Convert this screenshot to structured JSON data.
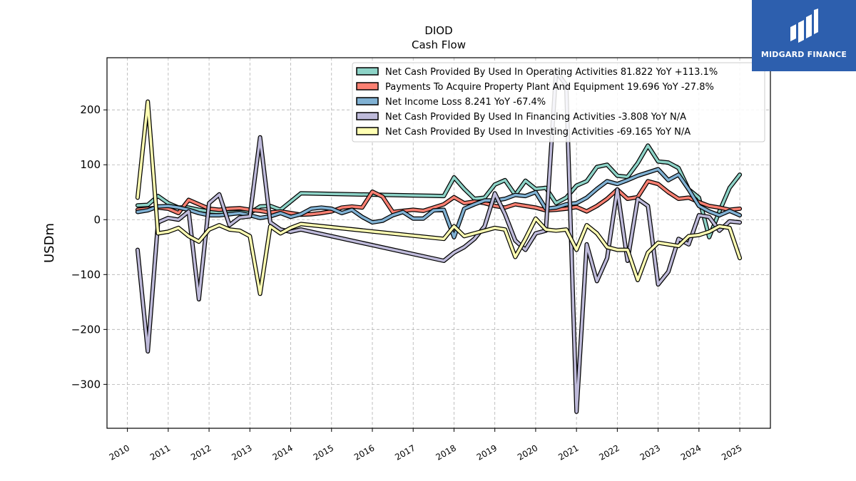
{
  "chart_data": {
    "type": "line",
    "title": "DIOD",
    "subtitle": "Cash Flow",
    "xlabel": "",
    "ylabel": "USDm",
    "ylim": [
      -380,
      295
    ],
    "xlim": [
      2009.5,
      2025.75
    ],
    "yticks": [
      -300,
      -200,
      -100,
      0,
      100,
      200
    ],
    "xticks": [
      "2010",
      "2011",
      "2012",
      "2013",
      "2014",
      "2015",
      "2016",
      "2017",
      "2018",
      "2019",
      "2020",
      "2021",
      "2022",
      "2023",
      "2024",
      "2025"
    ],
    "grid": true,
    "legend_position": "top-right",
    "series": [
      {
        "name": "Net Cash Provided By Used In Operating Activities",
        "legend": "Net Cash Provided By Used In Operating Activities  81.822 YoY +113.1%",
        "color": "#8dd3c7",
        "points": [
          [
            2010.25,
            26
          ],
          [
            2010.5,
            27
          ],
          [
            2010.75,
            43
          ],
          [
            2011.0,
            30
          ],
          [
            2011.25,
            22
          ],
          [
            2011.5,
            22
          ],
          [
            2011.75,
            18
          ],
          [
            2012.0,
            15
          ],
          [
            2012.25,
            14
          ],
          [
            2012.5,
            13
          ],
          [
            2012.75,
            14
          ],
          [
            2013.0,
            12
          ],
          [
            2013.25,
            24
          ],
          [
            2013.5,
            25
          ],
          [
            2013.75,
            18
          ],
          [
            2014.25,
            48
          ],
          [
            2017.75,
            43
          ],
          [
            2018.0,
            77
          ],
          [
            2018.25,
            56
          ],
          [
            2018.5,
            38
          ],
          [
            2018.75,
            40
          ],
          [
            2019.0,
            64
          ],
          [
            2019.25,
            72
          ],
          [
            2019.5,
            45
          ],
          [
            2019.75,
            71
          ],
          [
            2020.0,
            56
          ],
          [
            2020.25,
            58
          ],
          [
            2020.5,
            30
          ],
          [
            2020.75,
            40
          ],
          [
            2021.0,
            62
          ],
          [
            2021.25,
            70
          ],
          [
            2021.5,
            96
          ],
          [
            2021.75,
            100
          ],
          [
            2022.0,
            80
          ],
          [
            2022.25,
            78
          ],
          [
            2022.5,
            103
          ],
          [
            2022.75,
            135
          ],
          [
            2023.0,
            106
          ],
          [
            2023.25,
            104
          ],
          [
            2023.5,
            94
          ],
          [
            2023.75,
            55
          ],
          [
            2024.0,
            40
          ],
          [
            2024.25,
            -32
          ],
          [
            2024.5,
            15
          ],
          [
            2024.75,
            58
          ],
          [
            2025.0,
            82
          ]
        ]
      },
      {
        "name": "Payments To Acquire Property Plant And Equipment",
        "legend": "Payments To Acquire Property Plant And Equipment  19.696 YoY -27.8%",
        "color": "#fb8072",
        "points": [
          [
            2010.25,
            18
          ],
          [
            2010.5,
            20
          ],
          [
            2010.75,
            22
          ],
          [
            2011.0,
            20
          ],
          [
            2011.25,
            12
          ],
          [
            2011.5,
            36
          ],
          [
            2011.75,
            28
          ],
          [
            2012.0,
            20
          ],
          [
            2012.25,
            18
          ],
          [
            2012.5,
            20
          ],
          [
            2012.75,
            21
          ],
          [
            2013.0,
            18
          ],
          [
            2013.25,
            16
          ],
          [
            2013.5,
            13
          ],
          [
            2013.75,
            15
          ],
          [
            2014.0,
            12
          ],
          [
            2014.25,
            9
          ],
          [
            2014.5,
            10
          ],
          [
            2014.75,
            12
          ],
          [
            2015.0,
            15
          ],
          [
            2015.25,
            22
          ],
          [
            2015.5,
            24
          ],
          [
            2015.75,
            22
          ],
          [
            2016.0,
            51
          ],
          [
            2016.25,
            42
          ],
          [
            2016.5,
            14
          ],
          [
            2016.75,
            16
          ],
          [
            2017.0,
            18
          ],
          [
            2017.25,
            16
          ],
          [
            2017.5,
            22
          ],
          [
            2017.75,
            28
          ],
          [
            2018.0,
            41
          ],
          [
            2018.25,
            30
          ],
          [
            2018.5,
            33
          ],
          [
            2018.75,
            30
          ],
          [
            2019.0,
            25
          ],
          [
            2019.25,
            22
          ],
          [
            2019.5,
            28
          ],
          [
            2019.75,
            25
          ],
          [
            2020.0,
            22
          ],
          [
            2020.25,
            17
          ],
          [
            2020.5,
            18
          ],
          [
            2020.75,
            20
          ],
          [
            2021.0,
            23
          ],
          [
            2021.25,
            15
          ],
          [
            2021.5,
            25
          ],
          [
            2021.75,
            38
          ],
          [
            2022.0,
            55
          ],
          [
            2022.25,
            38
          ],
          [
            2022.5,
            41
          ],
          [
            2022.75,
            70
          ],
          [
            2023.0,
            65
          ],
          [
            2023.25,
            50
          ],
          [
            2023.5,
            38
          ],
          [
            2023.75,
            40
          ],
          [
            2024.0,
            32
          ],
          [
            2024.25,
            25
          ],
          [
            2024.5,
            22
          ],
          [
            2024.75,
            18
          ],
          [
            2025.0,
            20
          ]
        ]
      },
      {
        "name": "Net Income Loss",
        "legend": "Net Income Loss  8.241 YoY -67.4%",
        "color": "#80b1d3",
        "points": [
          [
            2010.25,
            14
          ],
          [
            2010.5,
            17
          ],
          [
            2010.75,
            24
          ],
          [
            2011.0,
            25
          ],
          [
            2011.25,
            22
          ],
          [
            2011.5,
            18
          ],
          [
            2011.75,
            12
          ],
          [
            2012.0,
            8
          ],
          [
            2012.25,
            8
          ],
          [
            2012.5,
            10
          ],
          [
            2012.75,
            12
          ],
          [
            2013.0,
            8
          ],
          [
            2013.25,
            3
          ],
          [
            2013.5,
            6
          ],
          [
            2013.75,
            12
          ],
          [
            2014.0,
            5
          ],
          [
            2014.25,
            10
          ],
          [
            2014.5,
            20
          ],
          [
            2014.75,
            22
          ],
          [
            2015.0,
            20
          ],
          [
            2015.25,
            12
          ],
          [
            2015.5,
            18
          ],
          [
            2015.75,
            5
          ],
          [
            2016.0,
            -5
          ],
          [
            2016.25,
            -2
          ],
          [
            2016.5,
            8
          ],
          [
            2016.75,
            14
          ],
          [
            2017.0,
            2
          ],
          [
            2017.25,
            2
          ],
          [
            2017.5,
            17
          ],
          [
            2017.75,
            18
          ],
          [
            2018.0,
            -32
          ],
          [
            2018.25,
            20
          ],
          [
            2018.5,
            28
          ],
          [
            2018.75,
            35
          ],
          [
            2019.0,
            35
          ],
          [
            2019.25,
            38
          ],
          [
            2019.5,
            45
          ],
          [
            2019.75,
            43
          ],
          [
            2020.0,
            50
          ],
          [
            2020.25,
            20
          ],
          [
            2020.5,
            22
          ],
          [
            2020.75,
            28
          ],
          [
            2021.0,
            30
          ],
          [
            2021.25,
            40
          ],
          [
            2021.5,
            56
          ],
          [
            2021.75,
            70
          ],
          [
            2022.0,
            65
          ],
          [
            2022.25,
            72
          ],
          [
            2022.5,
            80
          ],
          [
            2022.75,
            86
          ],
          [
            2023.0,
            92
          ],
          [
            2023.25,
            72
          ],
          [
            2023.5,
            82
          ],
          [
            2023.75,
            55
          ],
          [
            2024.0,
            25
          ],
          [
            2024.25,
            15
          ],
          [
            2024.5,
            8
          ],
          [
            2024.75,
            16
          ],
          [
            2025.0,
            8
          ]
        ]
      },
      {
        "name": "Net Cash Provided By Used In Financing Activities",
        "legend": "Net Cash Provided By Used In Financing Activities  -3.808 YoY N/A",
        "color": "#bebada",
        "points": [
          [
            2010.25,
            -55
          ],
          [
            2010.5,
            -240
          ],
          [
            2010.75,
            -5
          ],
          [
            2011.0,
            3
          ],
          [
            2011.25,
            0
          ],
          [
            2011.5,
            15
          ],
          [
            2011.75,
            -145
          ],
          [
            2012.0,
            30
          ],
          [
            2012.25,
            46
          ],
          [
            2012.5,
            -10
          ],
          [
            2012.75,
            4
          ],
          [
            2013.0,
            6
          ],
          [
            2013.25,
            150
          ],
          [
            2013.5,
            -5
          ],
          [
            2013.75,
            -18
          ],
          [
            2014.0,
            -22
          ],
          [
            2014.25,
            -18
          ],
          [
            2017.75,
            -75
          ],
          [
            2018.0,
            -60
          ],
          [
            2018.25,
            -50
          ],
          [
            2018.5,
            -35
          ],
          [
            2018.75,
            -12
          ],
          [
            2019.0,
            48
          ],
          [
            2019.25,
            10
          ],
          [
            2019.5,
            -38
          ],
          [
            2019.75,
            -55
          ],
          [
            2020.0,
            -25
          ],
          [
            2020.25,
            -20
          ],
          [
            2020.5,
            270
          ],
          [
            2020.75,
            245
          ],
          [
            2021.0,
            -350
          ],
          [
            2021.25,
            -45
          ],
          [
            2021.5,
            -112
          ],
          [
            2021.75,
            -70
          ],
          [
            2022.0,
            55
          ],
          [
            2022.25,
            -75
          ],
          [
            2022.5,
            38
          ],
          [
            2022.75,
            25
          ],
          [
            2023.0,
            -118
          ],
          [
            2023.25,
            -95
          ],
          [
            2023.5,
            -35
          ],
          [
            2023.75,
            -45
          ],
          [
            2024.0,
            8
          ],
          [
            2024.25,
            5
          ],
          [
            2024.5,
            -20
          ],
          [
            2024.75,
            -3
          ],
          [
            2025.0,
            -5
          ]
        ]
      },
      {
        "name": "Net Cash Provided By Used In Investing Activities",
        "legend": "Net Cash Provided By Used In Investing Activities  -69.165 YoY N/A",
        "color": "#ffffb3",
        "points": [
          [
            2010.25,
            40
          ],
          [
            2010.5,
            215
          ],
          [
            2010.75,
            -25
          ],
          [
            2011.0,
            -22
          ],
          [
            2011.25,
            -15
          ],
          [
            2011.5,
            -30
          ],
          [
            2011.75,
            -40
          ],
          [
            2012.0,
            -18
          ],
          [
            2012.25,
            -10
          ],
          [
            2012.5,
            -18
          ],
          [
            2012.75,
            -20
          ],
          [
            2013.0,
            -30
          ],
          [
            2013.25,
            -135
          ],
          [
            2013.5,
            -12
          ],
          [
            2013.75,
            -25
          ],
          [
            2014.0,
            -15
          ],
          [
            2014.25,
            -8
          ],
          [
            2017.75,
            -35
          ],
          [
            2018.0,
            -12
          ],
          [
            2018.25,
            -30
          ],
          [
            2018.5,
            -25
          ],
          [
            2018.75,
            -20
          ],
          [
            2019.0,
            -15
          ],
          [
            2019.25,
            -18
          ],
          [
            2019.5,
            -68
          ],
          [
            2019.75,
            -35
          ],
          [
            2020.0,
            2
          ],
          [
            2020.25,
            -18
          ],
          [
            2020.5,
            -20
          ],
          [
            2020.75,
            -18
          ],
          [
            2021.0,
            -55
          ],
          [
            2021.25,
            -10
          ],
          [
            2021.5,
            -25
          ],
          [
            2021.75,
            -50
          ],
          [
            2022.0,
            -55
          ],
          [
            2022.25,
            -55
          ],
          [
            2022.5,
            -110
          ],
          [
            2022.75,
            -60
          ],
          [
            2023.0,
            -42
          ],
          [
            2023.25,
            -45
          ],
          [
            2023.5,
            -48
          ],
          [
            2023.75,
            -30
          ],
          [
            2024.0,
            -28
          ],
          [
            2024.25,
            -22
          ],
          [
            2024.5,
            -12
          ],
          [
            2024.75,
            -15
          ],
          [
            2025.0,
            -70
          ]
        ]
      }
    ]
  },
  "logo": {
    "text": "MIDGARD FINANCE",
    "icon": "midgard-logo-icon",
    "background": "#2d5fae"
  }
}
